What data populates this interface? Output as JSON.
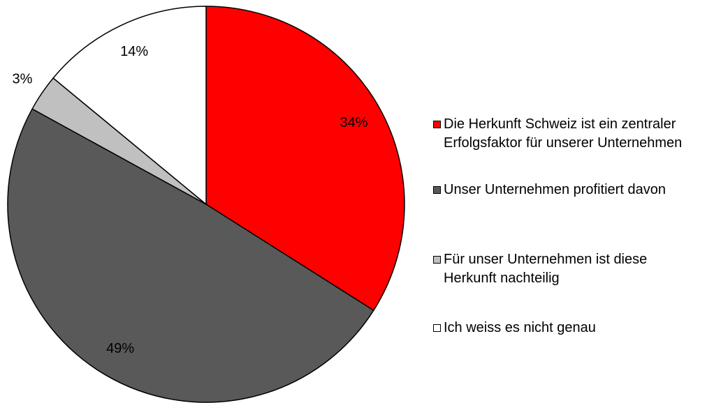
{
  "chart_data": {
    "type": "pie",
    "categories": [
      "Die Herkunft Schweiz ist ein zentraler Erfolgsfaktor für unserer Unternehmen",
      "Unser Unternehmen profitiert davon",
      "Für unser Unternehmen ist diese Herkunft nachteilig",
      "Ich weiss es nicht genau"
    ],
    "values": [
      34,
      49,
      3,
      14
    ],
    "value_labels": [
      "34%",
      "49%",
      "3%",
      "14%"
    ],
    "colors": [
      "#ff0000",
      "#595959",
      "#c0c0c0",
      "#ffffff"
    ],
    "legend": "right"
  }
}
